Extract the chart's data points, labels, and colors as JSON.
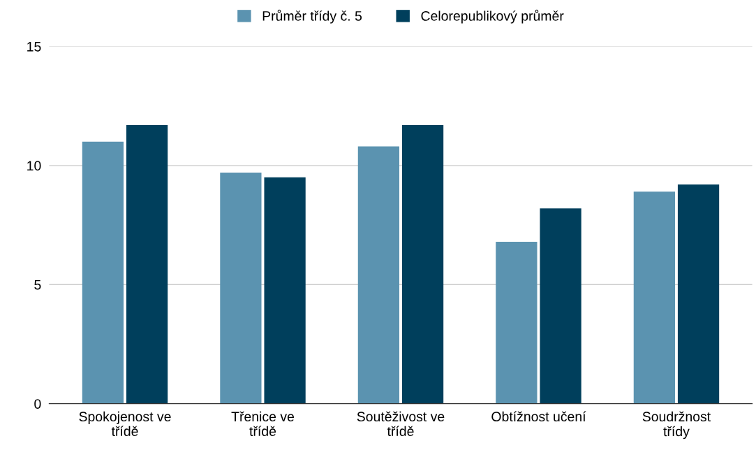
{
  "chart_data": {
    "type": "bar",
    "categories": [
      "Spokojenost ve třídě",
      "Třenice ve třídě",
      "Soutěživost ve třídě",
      "Obtížnost učení",
      "Soudržnost třídy"
    ],
    "series": [
      {
        "name": "Průměr třídy č. 5",
        "color": "#5b93b0",
        "values": [
          11.0,
          9.7,
          10.8,
          6.8,
          8.9
        ]
      },
      {
        "name": "Celorepublikový průměr",
        "color": "#003f5c",
        "values": [
          11.7,
          9.5,
          11.7,
          8.2,
          9.2
        ]
      }
    ],
    "ylim": [
      0,
      15
    ],
    "yticks": [
      0,
      5,
      10,
      15
    ],
    "grid": "y",
    "legend": "top"
  }
}
